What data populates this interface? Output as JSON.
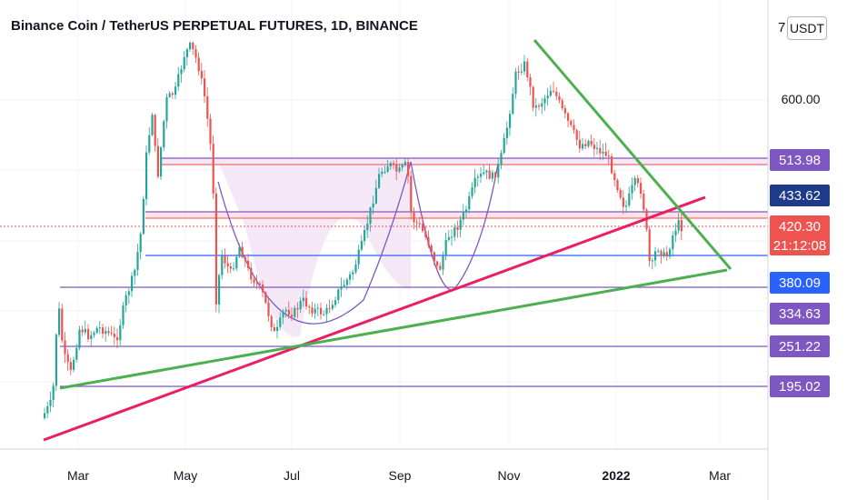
{
  "title": "Binance Coin / TetherUS PERPETUAL FUTURES, 1D, BINANCE",
  "unit_label": "USDT",
  "unit_clip": "7",
  "colors": {
    "up": "#26a69a",
    "down": "#ef5350",
    "purple": "#7e57c2",
    "blue": "#2962ff",
    "red_line": "#e91e63",
    "green_line": "#4caf50",
    "fill": "#f3e5f5",
    "dark_badge": "#1e3a8a"
  },
  "chart_data": {
    "type": "candlestick",
    "instrument": "BNBUSDT",
    "timeframe": "1D",
    "exchange": "BINANCE",
    "x_ticks": [
      "Mar",
      "May",
      "Jul",
      "Sep",
      "Nov",
      "2022",
      "Mar"
    ],
    "y_ticks": [
      "600.00"
    ],
    "price_labels": [
      {
        "text": "513.98",
        "kind": "purple"
      },
      {
        "text": "433.62",
        "kind": "dark"
      },
      {
        "text": "420.30",
        "kind": "last",
        "countdown": "21:12:08"
      },
      {
        "text": "380.09",
        "kind": "blue"
      },
      {
        "text": "334.63",
        "kind": "purple"
      },
      {
        "text": "251.22",
        "kind": "purple"
      },
      {
        "text": "195.02",
        "kind": "purple"
      }
    ],
    "last_price": 420.3,
    "countdown": "21:12:08"
  }
}
